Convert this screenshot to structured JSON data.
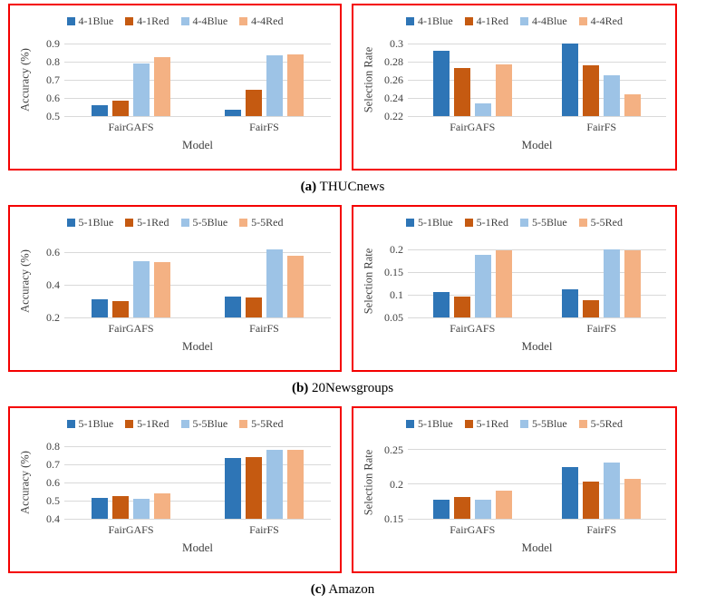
{
  "styles": {
    "series_colors": [
      "#2E75B6",
      "#C55A11",
      "#9DC3E6",
      "#F4B183"
    ],
    "panel_border_color": "#F40000",
    "gridline_color": "#D9D9D9",
    "axis_text_color": "#404040"
  },
  "chart_data": {
    "type": "bar",
    "panels": [
      {
        "caption_label": "(a)",
        "caption_title": "THUCnews",
        "charts": [
          {
            "type": "bar",
            "ylabel": "Accuracy (%)",
            "xlabel": "Model",
            "categories": [
              "FairGAFS",
              "FairFS"
            ],
            "ymin": 0.5,
            "ymax": 0.9,
            "yticks": [
              "0.9",
              "0.8",
              "0.7",
              "0.6",
              "0.5"
            ],
            "legend_position": "top",
            "grid": true,
            "series": [
              {
                "name": "4-1Blue",
                "values": [
                  0.56,
                  0.535
                ]
              },
              {
                "name": "4-1Red",
                "values": [
                  0.585,
                  0.645
                ]
              },
              {
                "name": "4-4Blue",
                "values": [
                  0.79,
                  0.835
                ]
              },
              {
                "name": "4-4Red",
                "values": [
                  0.825,
                  0.84
                ]
              }
            ]
          },
          {
            "type": "bar",
            "ylabel": "Selection Rate",
            "xlabel": "Model",
            "categories": [
              "FairGAFS",
              "FairFS"
            ],
            "ymin": 0.22,
            "ymax": 0.3,
            "yticks": [
              "0.3",
              "0.28",
              "0.26",
              "0.24",
              "0.22"
            ],
            "legend_position": "top",
            "grid": true,
            "series": [
              {
                "name": "4-1Blue",
                "values": [
                  0.292,
                  0.3
                ]
              },
              {
                "name": "4-1Red",
                "values": [
                  0.273,
                  0.276
                ]
              },
              {
                "name": "4-4Blue",
                "values": [
                  0.234,
                  0.265
                ]
              },
              {
                "name": "4-4Red",
                "values": [
                  0.277,
                  0.244
                ]
              }
            ]
          }
        ]
      },
      {
        "caption_label": "(b)",
        "caption_title": "20Newsgroups",
        "charts": [
          {
            "type": "bar",
            "ylabel": "Accuracy (%)",
            "xlabel": "Model",
            "categories": [
              "FairGAFS",
              "FairFS"
            ],
            "ymin": 0.2,
            "ymax": 0.645,
            "yticks": [
              "0.6",
              "0.4",
              "0.2"
            ],
            "legend_position": "top",
            "grid": true,
            "series": [
              {
                "name": "5-1Blue",
                "values": [
                  0.31,
                  0.33
                ]
              },
              {
                "name": "5-1Red",
                "values": [
                  0.3,
                  0.32
                ]
              },
              {
                "name": "5-5Blue",
                "values": [
                  0.545,
                  0.615
                ]
              },
              {
                "name": "5-5Red",
                "values": [
                  0.54,
                  0.58
                ]
              }
            ]
          },
          {
            "type": "bar",
            "ylabel": "Selection Rate",
            "xlabel": "Model",
            "categories": [
              "FairGAFS",
              "FairFS"
            ],
            "ymin": 0.05,
            "ymax": 0.21,
            "yticks": [
              "0.2",
              "0.15",
              "0.1",
              "0.05"
            ],
            "legend_position": "top",
            "grid": true,
            "series": [
              {
                "name": "5-1Blue",
                "values": [
                  0.107,
                  0.113
                ]
              },
              {
                "name": "5-1Red",
                "values": [
                  0.096,
                  0.088
                ]
              },
              {
                "name": "5-5Blue",
                "values": [
                  0.188,
                  0.201
                ]
              },
              {
                "name": "5-5Red",
                "values": [
                  0.199,
                  0.199
                ]
              }
            ]
          }
        ]
      },
      {
        "caption_label": "(c)",
        "caption_title": "Amazon",
        "charts": [
          {
            "type": "bar",
            "ylabel": "Accuracy (%)",
            "xlabel": "Model",
            "categories": [
              "FairGAFS",
              "FairFS"
            ],
            "ymin": 0.4,
            "ymax": 0.8,
            "yticks": [
              "0.8",
              "0.7",
              "0.6",
              "0.5",
              "0.4"
            ],
            "legend_position": "top",
            "grid": true,
            "series": [
              {
                "name": "5-1Blue",
                "values": [
                  0.515,
                  0.735
                ]
              },
              {
                "name": "5-1Red",
                "values": [
                  0.525,
                  0.74
                ]
              },
              {
                "name": "5-5Blue",
                "values": [
                  0.51,
                  0.78
                ]
              },
              {
                "name": "5-5Red",
                "values": [
                  0.54,
                  0.78
                ]
              }
            ]
          },
          {
            "type": "bar",
            "ylabel": "Selection Rate",
            "xlabel": "Model",
            "categories": [
              "FairGAFS",
              "FairFS"
            ],
            "ymin": 0.15,
            "ymax": 0.255,
            "yticks": [
              "0.25",
              "0.2",
              "0.15"
            ],
            "legend_position": "top",
            "grid": true,
            "series": [
              {
                "name": "5-1Blue",
                "values": [
                  0.178,
                  0.225
                ]
              },
              {
                "name": "5-1Red",
                "values": [
                  0.182,
                  0.204
                ]
              },
              {
                "name": "5-5Blue",
                "values": [
                  0.178,
                  0.231
                ]
              },
              {
                "name": "5-5Red",
                "values": [
                  0.191,
                  0.208
                ]
              }
            ]
          }
        ]
      }
    ]
  }
}
